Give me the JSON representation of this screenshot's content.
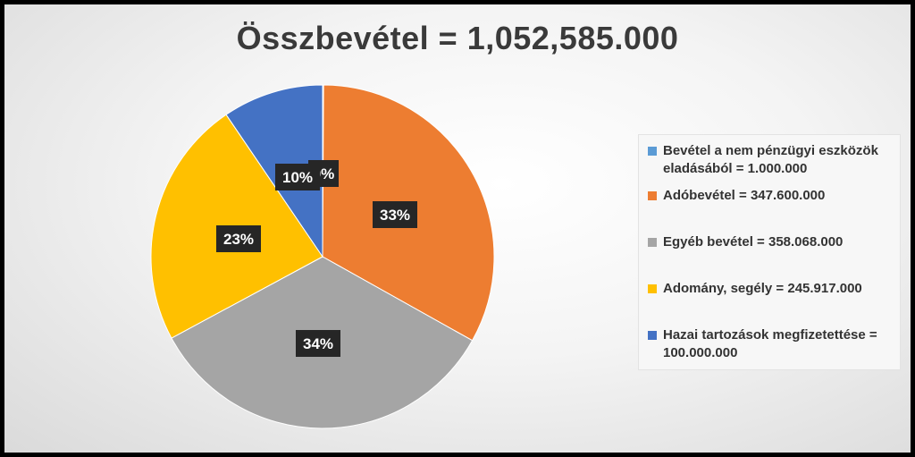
{
  "colors": {
    "light_blue": "#5b9bd5",
    "orange": "#ed7d31",
    "gray": "#a5a5a5",
    "gold": "#ffc000",
    "blue": "#4472c4",
    "label_bg": "#262626"
  },
  "chart_data": {
    "type": "pie",
    "title": "Összbevétel = 1,052,585.000",
    "slices": [
      {
        "label": "Bevétel a nem pénzügyi eszközök eladásából = 1.000.000",
        "value": 1000000,
        "percent_label": "0%",
        "color": "#5b9bd5"
      },
      {
        "label": "Adóbevétel = 347.600.000",
        "value": 347600000,
        "percent_label": "33%",
        "color": "#ed7d31"
      },
      {
        "label": "Egyéb bevétel = 358.068.000",
        "value": 358068000,
        "percent_label": "34%",
        "color": "#a5a5a5"
      },
      {
        "label": "Adomány, segély = 245.917.000",
        "value": 245917000,
        "percent_label": "23%",
        "color": "#ffc000"
      },
      {
        "label": "Hazai tartozások megfizetettése = 100.000.000",
        "value": 100000000,
        "percent_label": "10%",
        "color": "#4472c4"
      }
    ],
    "legend_position": "right"
  }
}
